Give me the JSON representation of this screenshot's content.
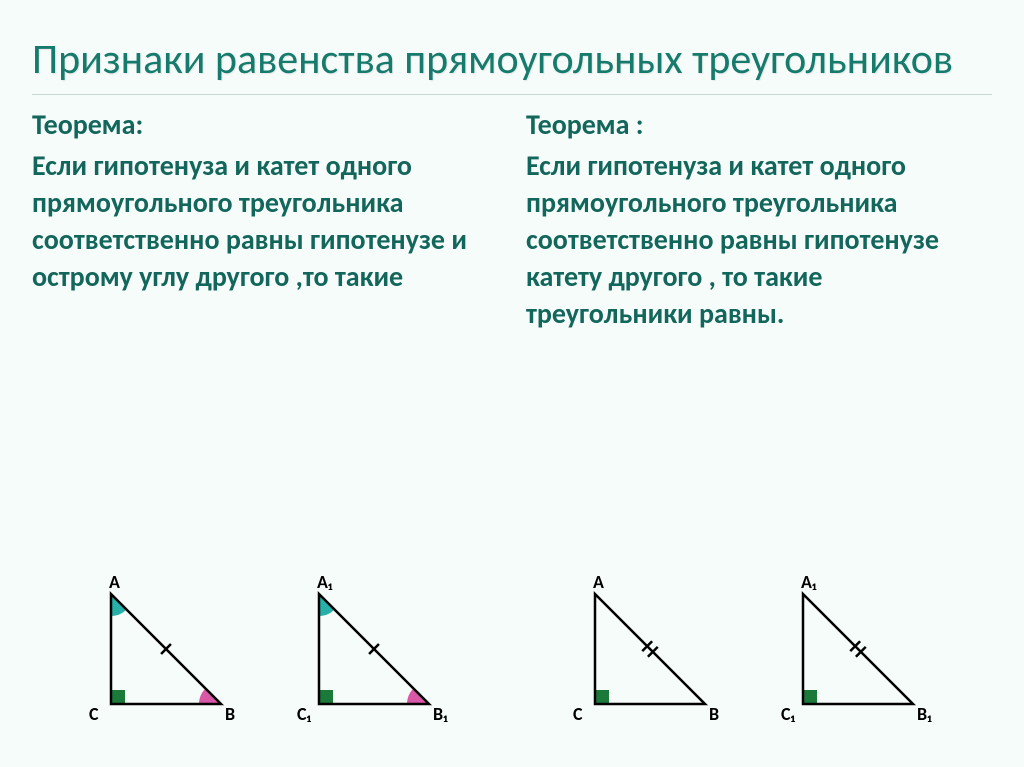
{
  "title": "Признаки равенства прямоугольных треугольников",
  "left": {
    "heading": "Теорема:",
    "text": "Если гипотенуза и катет одного прямоугольного треугольника соответственно равны гипотенузе и острому углу другого ,то такие"
  },
  "right": {
    "heading": "Теорема :",
    "text": "Если гипотенуза и катет одного прямоугольного треугольника соответственно равны гипотенузе катету другого , то такие треугольники равны."
  },
  "colors": {
    "bg": "#f5fcf9",
    "heading": "#167a6c",
    "text": "#13665b",
    "stroke": "#000000",
    "angle_cyan": "#26b0a7",
    "angle_pink": "#d957a7",
    "right_sq": "#1b7a3a",
    "label": "#000000"
  },
  "fig": {
    "left": {
      "tri1": {
        "labels": {
          "A": "A",
          "B": "B",
          "C": "C"
        },
        "angle_top": true,
        "angle_bot": true,
        "ticks": 1
      },
      "tri2": {
        "labels": {
          "A": "A₁",
          "B": "B₁",
          "C": "C₁"
        },
        "angle_top": true,
        "angle_bot": true,
        "ticks": 1
      }
    },
    "right": {
      "tri1": {
        "labels": {
          "A": "A",
          "B": "B",
          "C": "C"
        },
        "angle_top": false,
        "angle_bot": false,
        "ticks": 2
      },
      "tri2": {
        "labels": {
          "A": "A₁",
          "B": "B₁",
          "C": "C₁"
        },
        "angle_top": false,
        "angle_bot": false,
        "ticks": 2
      }
    }
  }
}
